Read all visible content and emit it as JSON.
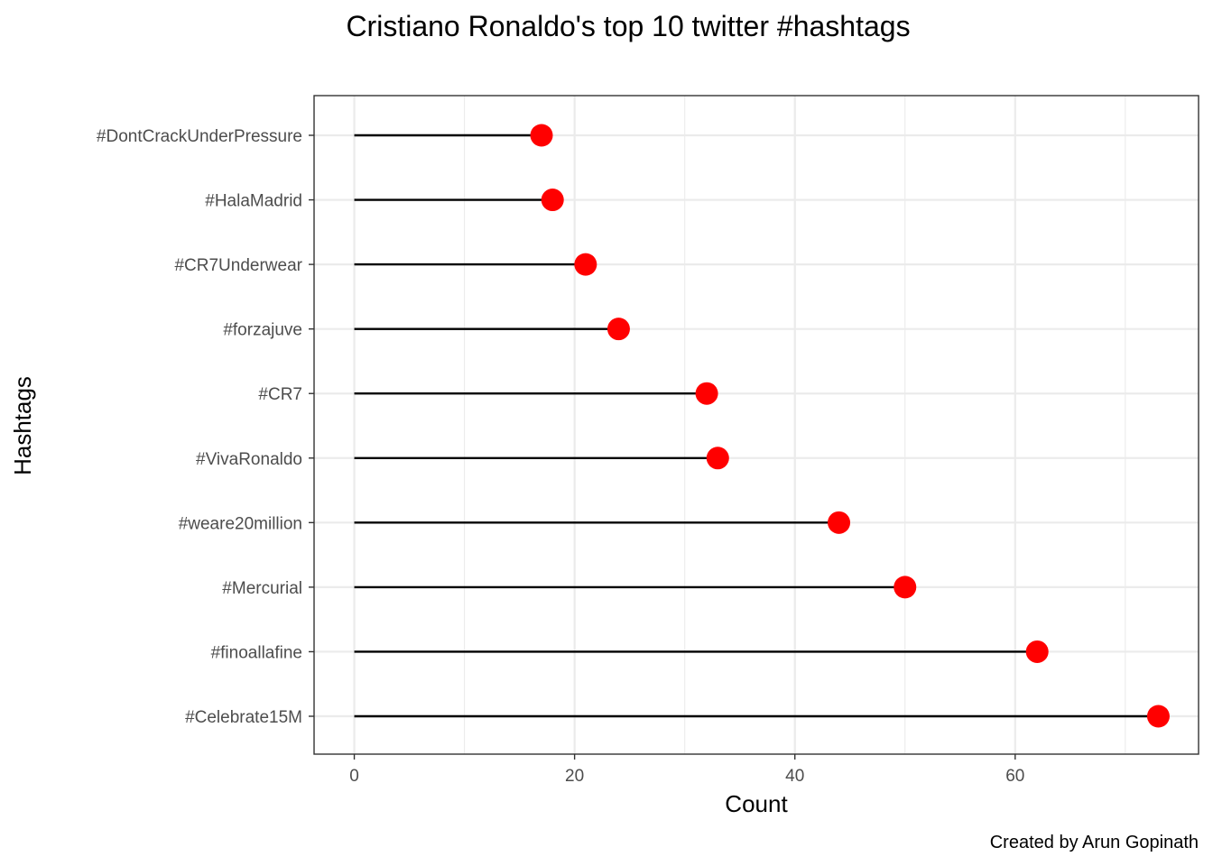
{
  "chart_data": {
    "type": "lollipop",
    "title": "Cristiano Ronaldo's top 10 twitter #hashtags",
    "xlabel": "Count",
    "ylabel": "Hashtags",
    "caption": "Created by Arun Gopinath",
    "categories": [
      "#DontCrackUnderPressure",
      "#HalaMadrid",
      "#CR7Underwear",
      "#forzajuve",
      "#CR7",
      "#VivaRonaldo",
      "#weare20million",
      "#Mercurial",
      "#finoallafine",
      "#Celebrate15M"
    ],
    "values": [
      17,
      18,
      21,
      24,
      32,
      33,
      44,
      50,
      62,
      73
    ],
    "xlim": [
      -3.65,
      76.65
    ],
    "xticks": [
      0,
      20,
      40,
      60
    ],
    "grid": true,
    "colors": {
      "point": "#ff0000",
      "stem": "#000000",
      "grid": "#ebebeb",
      "panel_border": "#333333",
      "tick_text": "#4d4d4d"
    }
  }
}
